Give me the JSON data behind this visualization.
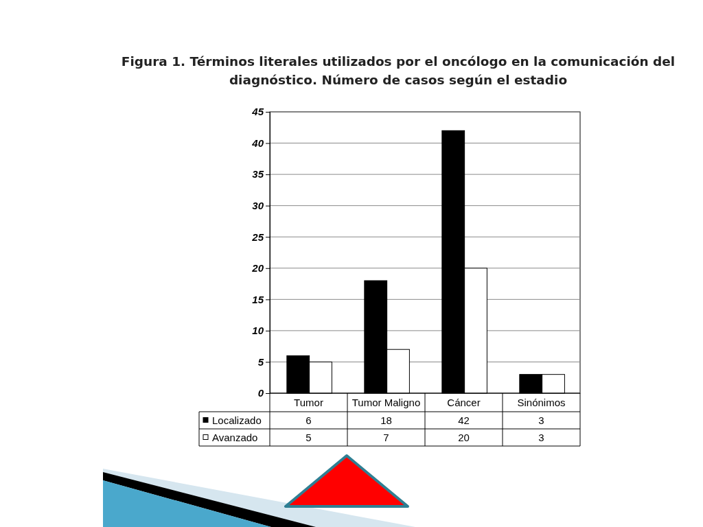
{
  "chart_data": {
    "type": "bar",
    "title": "Figura 1. Términos literales utilizados por el oncólogo en la comunicación del diagnóstico. Número de casos según el estadio",
    "categories": [
      "Tumor",
      "Tumor Maligno",
      "Cáncer",
      "Sinónimos"
    ],
    "series": [
      {
        "name": "Localizado",
        "color": "#000000",
        "values": [
          6,
          18,
          42,
          3
        ]
      },
      {
        "name": "Avanzado",
        "color": "#ffffff",
        "values": [
          5,
          7,
          20,
          3
        ]
      }
    ],
    "ylim": [
      0,
      45
    ],
    "yticks": [
      0,
      5,
      10,
      15,
      20,
      25,
      30,
      35,
      40,
      45
    ],
    "grid": "y",
    "legend": "bottom",
    "data_labels": true
  }
}
